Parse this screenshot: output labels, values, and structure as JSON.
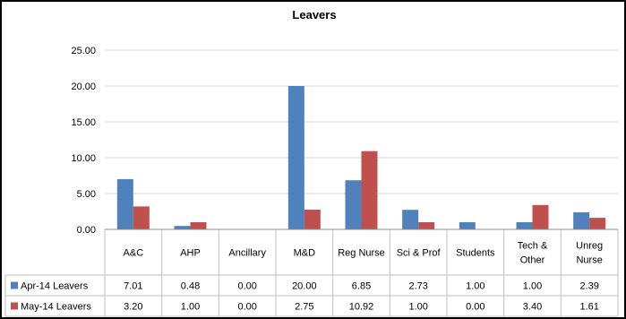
{
  "chart_data": {
    "type": "bar",
    "title": "Leavers",
    "xlabel": "",
    "ylabel": "",
    "ylim": [
      0,
      25
    ],
    "yticks": [
      "0.00",
      "5.00",
      "10.00",
      "15.00",
      "20.00",
      "25.00"
    ],
    "grid": true,
    "legend": "data table",
    "categories": [
      [
        "A&C"
      ],
      [
        "AHP"
      ],
      [
        "Ancillary"
      ],
      [
        "M&D"
      ],
      [
        "Reg Nurse"
      ],
      [
        "Sci & Prof"
      ],
      [
        "Students"
      ],
      [
        "Tech &",
        "Other"
      ],
      [
        "Unreg",
        "Nurse"
      ]
    ],
    "series": [
      {
        "name": "Apr-14 Leavers",
        "color": "#4f81bd",
        "values": [
          7.01,
          0.48,
          0.0,
          20.0,
          6.85,
          2.73,
          1.0,
          1.0,
          2.39
        ],
        "labels": [
          "7.01",
          "0.48",
          "0.00",
          "20.00",
          "6.85",
          "2.73",
          "1.00",
          "1.00",
          "2.39"
        ]
      },
      {
        "name": "May-14 Leavers",
        "color": "#c0504d",
        "values": [
          3.2,
          1.0,
          0.0,
          2.75,
          10.92,
          1.0,
          0.0,
          3.4,
          1.61
        ],
        "labels": [
          "3.20",
          "1.00",
          "0.00",
          "2.75",
          "10.92",
          "1.00",
          "0.00",
          "3.40",
          "1.61"
        ]
      }
    ]
  }
}
